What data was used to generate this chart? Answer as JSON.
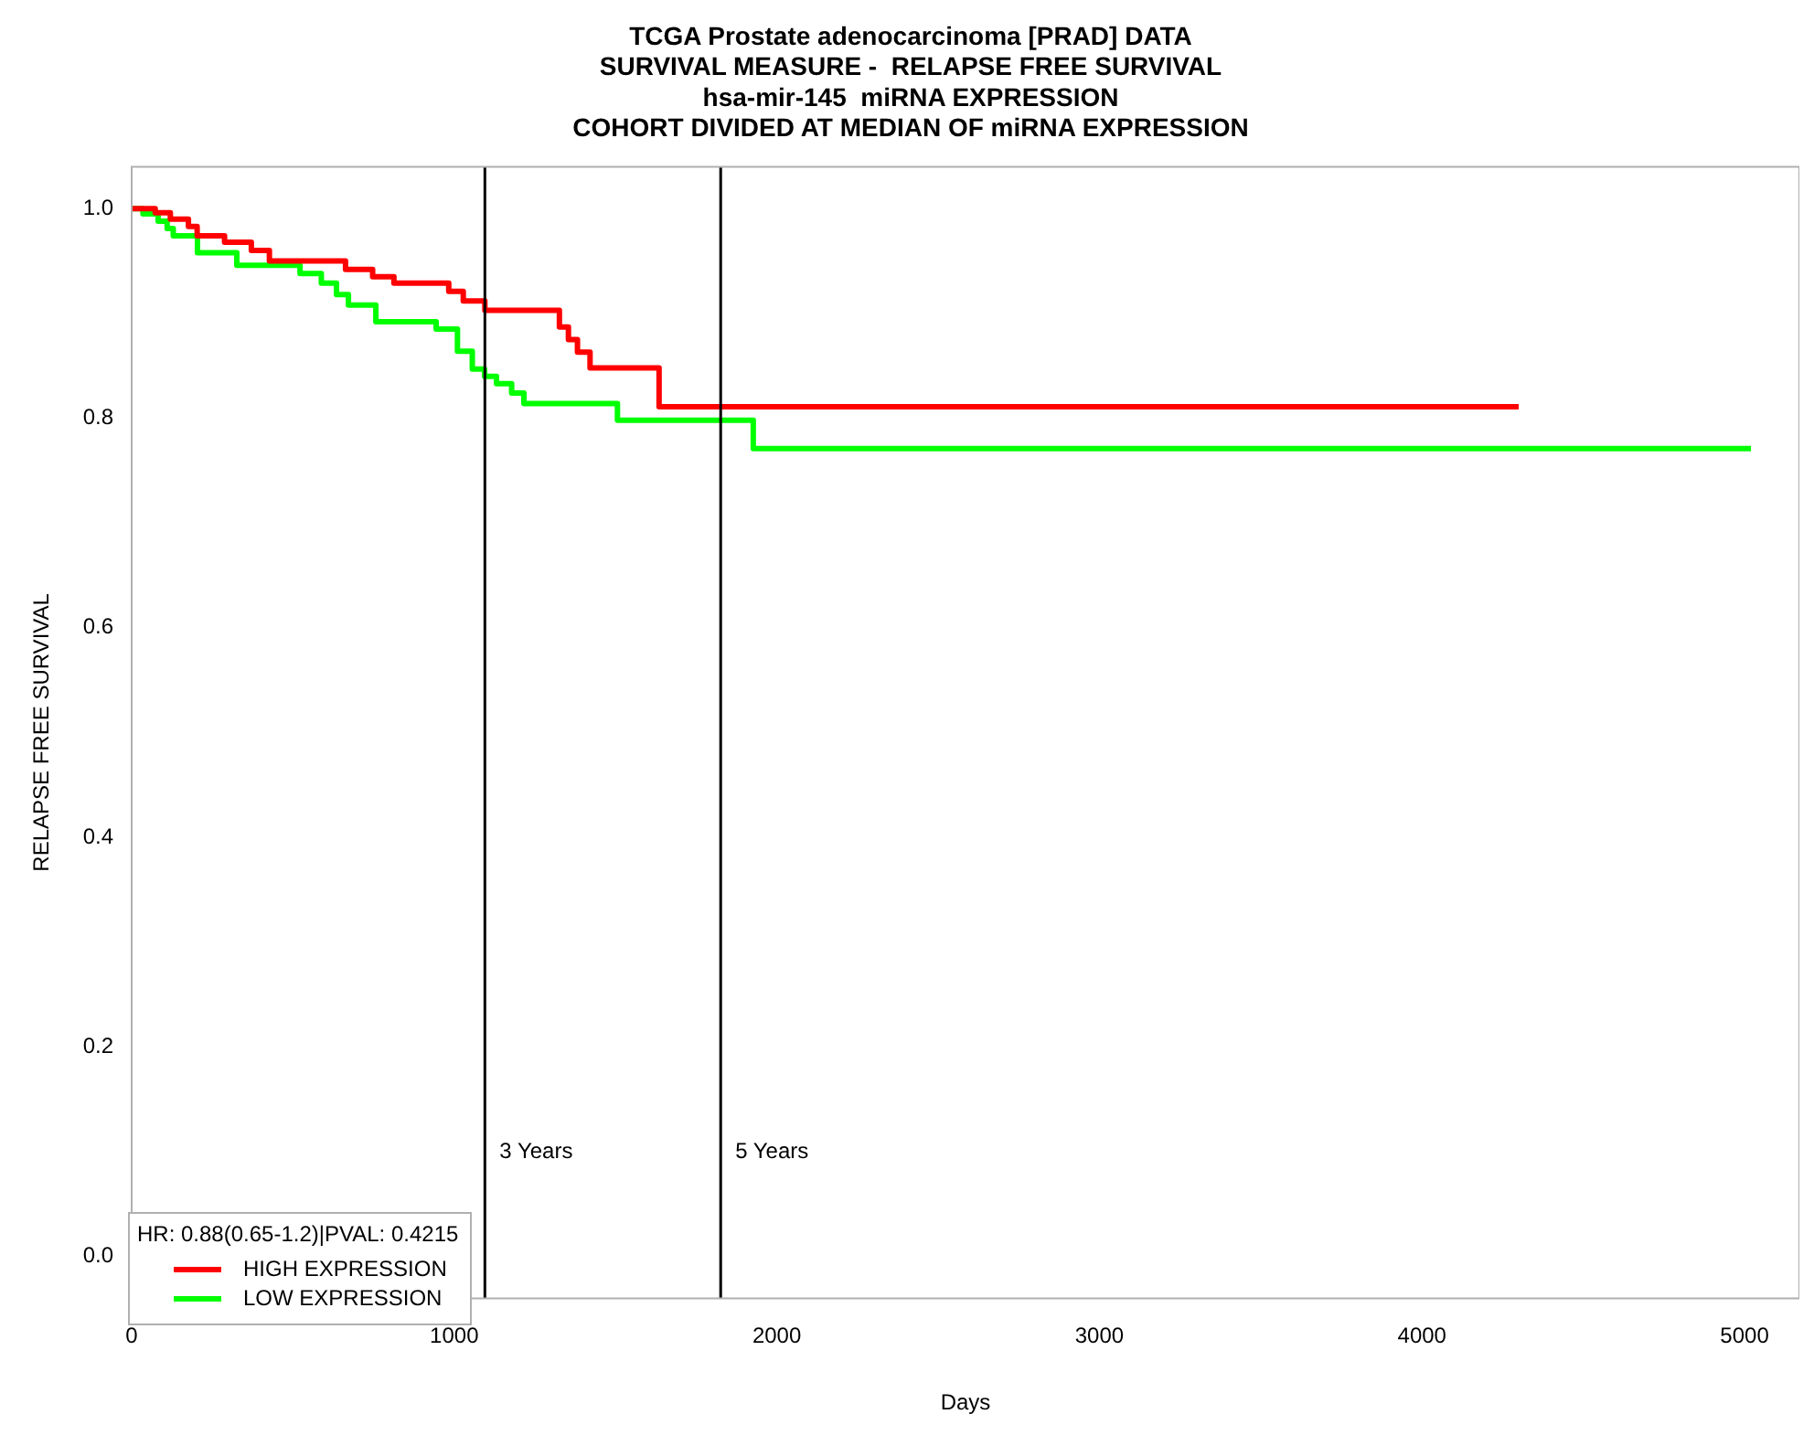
{
  "chart_data": {
    "type": "step",
    "title": "TCGA Prostate adenocarcinoma [PRAD] DATA\nSURVIVAL MEASURE -  RELAPSE FREE SURVIVAL\nhsa-mir-145  miRNA EXPRESSION\nCOHORT DIVIDED AT MEDIAN OF miRNA EXPRESSION",
    "xlabel": "Days",
    "ylabel": "RELAPSE FREE SURVIVAL",
    "legend_title": "HR: 0.88(0.65-1.2)|PVAL: 0.4215",
    "legend": "bottom left",
    "grid": false,
    "marker": "none",
    "line_style": "solid",
    "xlim": [
      0,
      5170
    ],
    "ylim": [
      -0.04,
      1.04
    ],
    "xticks": [
      0,
      1000,
      2000,
      3000,
      4000,
      5000
    ],
    "yticks": [
      {
        "value": 0,
        "label": "0.0"
      },
      {
        "value": 0.2,
        "label": "0.2"
      },
      {
        "value": 0.4,
        "label": "0.4"
      },
      {
        "value": 0.6,
        "label": "0.6"
      },
      {
        "value": 0.8,
        "label": "0.8"
      },
      {
        "value": 1,
        "label": "1.0"
      }
    ],
    "ref_lines": [
      {
        "axis": "x",
        "value": 1095,
        "label": "3 Years",
        "color": "#000000"
      },
      {
        "axis": "x",
        "value": 1826,
        "label": "5 Years",
        "color": "#000000"
      }
    ],
    "series": [
      {
        "name": "HIGH EXPRESSION",
        "color": "#ff0000",
        "x": [
          0,
          73,
          120,
          176,
          203,
          288,
          371,
          427,
          663,
          747,
          813,
          983,
          1028,
          1095,
          1326,
          1354,
          1382,
          1421,
          1635,
          4300
        ],
        "values": [
          1.0,
          0.996,
          0.99,
          0.983,
          0.974,
          0.968,
          0.96,
          0.95,
          0.942,
          0.935,
          0.929,
          0.921,
          0.912,
          0.903,
          0.887,
          0.875,
          0.863,
          0.848,
          0.811,
          0.811
        ]
      },
      {
        "name": "LOW EXPRESSION",
        "color": "#00ff00",
        "x": [
          0,
          35,
          82,
          110,
          129,
          204,
          326,
          522,
          588,
          635,
          672,
          757,
          944,
          1010,
          1056,
          1094,
          1131,
          1178,
          1216,
          1506,
          1927,
          5020
        ],
        "values": [
          1.0,
          0.995,
          0.988,
          0.981,
          0.974,
          0.958,
          0.946,
          0.938,
          0.929,
          0.918,
          0.908,
          0.892,
          0.885,
          0.864,
          0.847,
          0.84,
          0.833,
          0.824,
          0.814,
          0.798,
          0.771,
          0.771
        ]
      }
    ]
  }
}
